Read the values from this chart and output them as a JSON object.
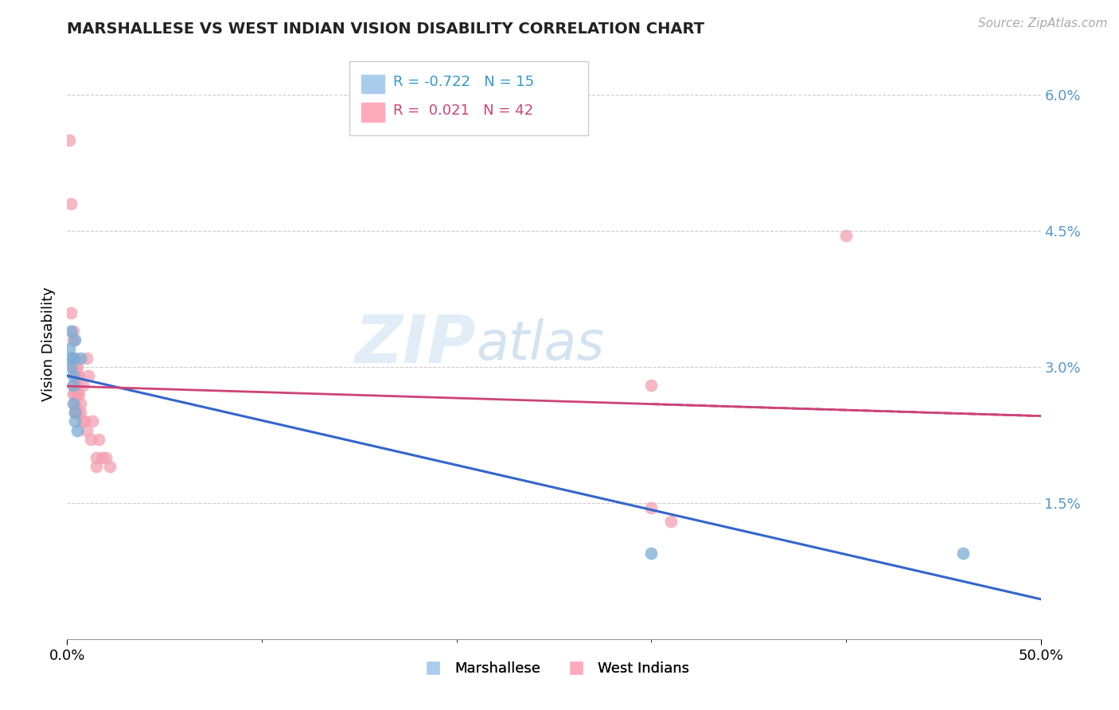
{
  "title": "MARSHALLESE VS WEST INDIAN VISION DISABILITY CORRELATION CHART",
  "source": "Source: ZipAtlas.com",
  "ylabel": "Vision Disability",
  "xlim": [
    0.0,
    0.5
  ],
  "ylim": [
    0.0,
    0.065
  ],
  "yticks": [
    0.0,
    0.015,
    0.03,
    0.045,
    0.06
  ],
  "ytick_labels": [
    "",
    "1.5%",
    "3.0%",
    "4.5%",
    "6.0%"
  ],
  "xtick_labels_ends": [
    "0.0%",
    "50.0%"
  ],
  "grid_color": "#cccccc",
  "background_color": "#ffffff",
  "marshallese_color": "#7aadd4",
  "west_indian_color": "#f4a0b0",
  "line_blue": "#3366cc",
  "line_pink": "#cc4477",
  "marshallese_R": "-0.722",
  "marshallese_N": "15",
  "west_indian_R": "0.021",
  "west_indian_N": "42",
  "marshallese_points": [
    [
      0.001,
      0.032
    ],
    [
      0.002,
      0.034
    ],
    [
      0.002,
      0.031
    ],
    [
      0.002,
      0.03
    ],
    [
      0.003,
      0.031
    ],
    [
      0.003,
      0.029
    ],
    [
      0.003,
      0.028
    ],
    [
      0.003,
      0.026
    ],
    [
      0.004,
      0.033
    ],
    [
      0.004,
      0.025
    ],
    [
      0.004,
      0.024
    ],
    [
      0.005,
      0.023
    ],
    [
      0.007,
      0.031
    ],
    [
      0.3,
      0.0095
    ],
    [
      0.46,
      0.0095
    ]
  ],
  "west_indian_points": [
    [
      0.001,
      0.055
    ],
    [
      0.002,
      0.048
    ],
    [
      0.002,
      0.036
    ],
    [
      0.003,
      0.034
    ],
    [
      0.003,
      0.033
    ],
    [
      0.003,
      0.031
    ],
    [
      0.003,
      0.03
    ],
    [
      0.003,
      0.028
    ],
    [
      0.003,
      0.027
    ],
    [
      0.004,
      0.031
    ],
    [
      0.004,
      0.03
    ],
    [
      0.004,
      0.029
    ],
    [
      0.004,
      0.027
    ],
    [
      0.004,
      0.026
    ],
    [
      0.004,
      0.025
    ],
    [
      0.005,
      0.03
    ],
    [
      0.005,
      0.029
    ],
    [
      0.005,
      0.028
    ],
    [
      0.005,
      0.027
    ],
    [
      0.005,
      0.025
    ],
    [
      0.006,
      0.029
    ],
    [
      0.006,
      0.027
    ],
    [
      0.007,
      0.026
    ],
    [
      0.007,
      0.025
    ],
    [
      0.008,
      0.024
    ],
    [
      0.008,
      0.028
    ],
    [
      0.009,
      0.024
    ],
    [
      0.01,
      0.023
    ],
    [
      0.01,
      0.031
    ],
    [
      0.011,
      0.029
    ],
    [
      0.012,
      0.022
    ],
    [
      0.013,
      0.024
    ],
    [
      0.015,
      0.02
    ],
    [
      0.015,
      0.019
    ],
    [
      0.016,
      0.022
    ],
    [
      0.018,
      0.02
    ],
    [
      0.02,
      0.02
    ],
    [
      0.022,
      0.019
    ],
    [
      0.3,
      0.028
    ],
    [
      0.3,
      0.0145
    ],
    [
      0.31,
      0.013
    ],
    [
      0.4,
      0.0445
    ]
  ]
}
